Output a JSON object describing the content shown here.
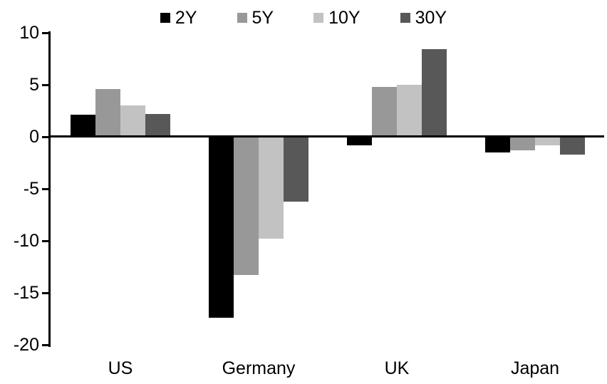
{
  "chart": {
    "background": "#ffffff",
    "axis_color": "#000000"
  },
  "chart_data": {
    "type": "bar",
    "title": "",
    "xlabel": "",
    "ylabel": "",
    "grid": false,
    "categories": [
      "US",
      "Germany",
      "UK",
      "Japan"
    ],
    "series": [
      {
        "name": "2Y",
        "color": "#000000",
        "values": [
          2.1,
          -17.4,
          -0.8,
          -1.5
        ]
      },
      {
        "name": "5Y",
        "color": "#989898",
        "values": [
          4.6,
          -13.3,
          4.8,
          -1.3
        ]
      },
      {
        "name": "10Y",
        "color": "#c2c2c2",
        "values": [
          3.0,
          -9.8,
          5.0,
          -0.8
        ]
      },
      {
        "name": "30Y",
        "color": "#585858",
        "values": [
          2.2,
          -6.2,
          8.4,
          -1.7
        ]
      }
    ],
    "ylim": [
      -20,
      10
    ],
    "yticks": [
      10,
      5,
      0,
      -5,
      -10,
      -15,
      -20
    ],
    "legend": {
      "position": "top",
      "labels": [
        "2Y",
        "5Y",
        "10Y",
        "30Y"
      ]
    }
  }
}
